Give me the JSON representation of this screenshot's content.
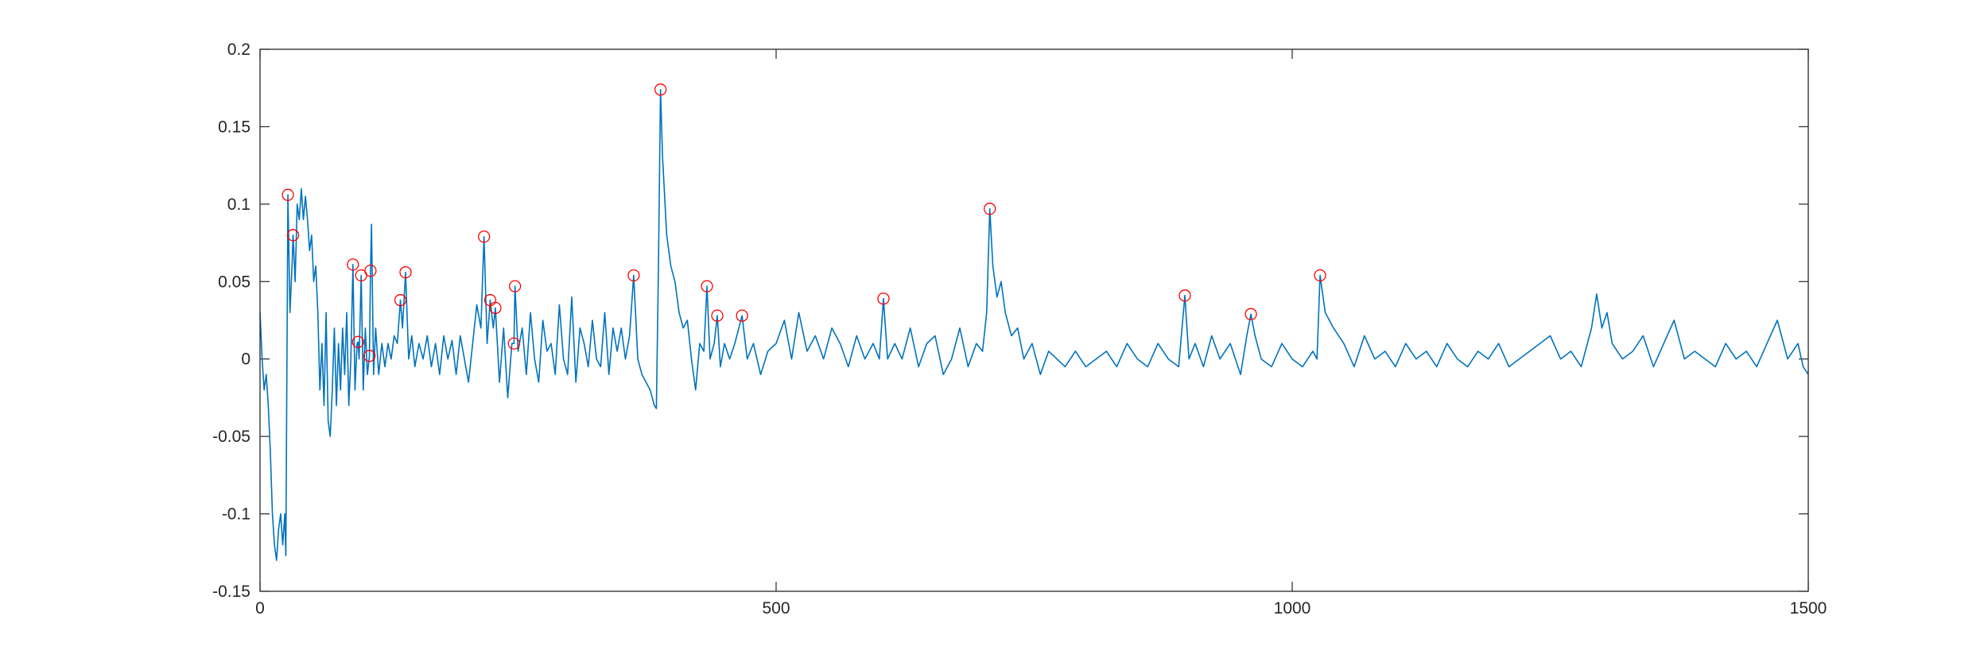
{
  "chart_data": {
    "type": "line",
    "xlim": [
      0,
      1500
    ],
    "ylim": [
      -0.15,
      0.2
    ],
    "xticks": [
      0,
      500,
      1000,
      1500
    ],
    "yticks": [
      -0.15,
      -0.1,
      -0.05,
      0,
      0.05,
      0.1,
      0.15,
      0.2
    ],
    "box": true,
    "series": [
      {
        "color": "#0072bd",
        "marker": "none",
        "x": [
          0,
          2,
          4,
          6,
          8,
          10,
          12,
          14,
          16,
          18,
          20,
          22,
          24,
          25,
          27,
          29,
          31,
          32,
          34,
          36,
          38,
          40,
          42,
          44,
          46,
          48,
          50,
          52,
          54,
          56,
          58,
          60,
          62,
          64,
          66,
          68,
          70,
          72,
          74,
          76,
          78,
          80,
          82,
          84,
          86,
          88,
          90,
          92,
          94,
          95,
          96,
          98,
          100,
          102,
          104,
          106,
          107,
          108,
          110,
          112,
          115,
          118,
          121,
          124,
          127,
          130,
          133,
          136,
          138,
          141,
          144,
          147,
          150,
          154,
          158,
          162,
          166,
          170,
          174,
          178,
          182,
          186,
          190,
          194,
          198,
          202,
          206,
          210,
          214,
          217,
          220,
          223,
          226,
          228,
          232,
          236,
          240,
          244,
          246,
          247,
          250,
          254,
          258,
          262,
          266,
          270,
          274,
          278,
          282,
          286,
          290,
          294,
          298,
          302,
          306,
          310,
          314,
          318,
          322,
          326,
          330,
          334,
          338,
          342,
          346,
          350,
          354,
          358,
          362,
          366,
          370,
          374,
          378,
          382,
          384,
          386,
          388,
          390,
          394,
          398,
          402,
          406,
          410,
          414,
          418,
          422,
          426,
          430,
          433,
          436,
          440,
          443,
          446,
          450,
          455,
          460,
          467,
          472,
          478,
          485,
          492,
          500,
          508,
          515,
          522,
          530,
          538,
          546,
          554,
          562,
          570,
          578,
          586,
          594,
          600,
          604,
          608,
          615,
          622,
          630,
          638,
          646,
          654,
          662,
          670,
          678,
          686,
          694,
          700,
          704,
          707,
          710,
          714,
          718,
          722,
          728,
          734,
          740,
          748,
          756,
          764,
          772,
          780,
          790,
          800,
          810,
          820,
          830,
          840,
          850,
          860,
          870,
          880,
          890,
          896,
          900,
          906,
          914,
          922,
          930,
          940,
          950,
          956,
          960,
          964,
          970,
          980,
          990,
          1000,
          1010,
          1020,
          1024,
          1027,
          1032,
          1040,
          1050,
          1060,
          1070,
          1080,
          1090,
          1100,
          1110,
          1120,
          1130,
          1140,
          1150,
          1160,
          1170,
          1180,
          1190,
          1200,
          1210,
          1220,
          1230,
          1240,
          1250,
          1260,
          1270,
          1280,
          1290,
          1295,
          1300,
          1305,
          1310,
          1320,
          1330,
          1340,
          1350,
          1360,
          1370,
          1380,
          1390,
          1400,
          1410,
          1420,
          1430,
          1440,
          1450,
          1460,
          1470,
          1480,
          1490,
          1495,
          1500
        ],
        "values": [
          0.03,
          0.0,
          -0.02,
          -0.01,
          -0.03,
          -0.06,
          -0.1,
          -0.12,
          -0.13,
          -0.11,
          -0.1,
          -0.12,
          -0.1,
          -0.127,
          0.106,
          0.03,
          0.06,
          0.08,
          0.05,
          0.1,
          0.09,
          0.11,
          0.09,
          0.105,
          0.09,
          0.07,
          0.08,
          0.05,
          0.06,
          0.03,
          -0.02,
          0.01,
          -0.03,
          0.03,
          -0.04,
          -0.05,
          -0.02,
          0.02,
          -0.03,
          0.01,
          -0.02,
          0.02,
          -0.01,
          0.03,
          -0.03,
          0.0,
          0.061,
          -0.02,
          0.01,
          0.011,
          0.0,
          0.054,
          -0.02,
          0.02,
          -0.01,
          0.002,
          0.057,
          0.087,
          -0.01,
          0.02,
          -0.01,
          0.01,
          -0.005,
          0.01,
          0.0,
          0.015,
          0.01,
          0.038,
          0.02,
          0.056,
          0.0,
          0.015,
          -0.005,
          0.01,
          0.0,
          0.015,
          -0.005,
          0.01,
          -0.01,
          0.015,
          0.0,
          0.012,
          -0.01,
          0.015,
          0.0,
          -0.015,
          0.01,
          0.035,
          0.02,
          0.079,
          0.01,
          0.038,
          0.02,
          0.033,
          -0.015,
          0.02,
          -0.025,
          0.01,
          0.01,
          0.047,
          0.005,
          0.02,
          -0.01,
          0.03,
          0.0,
          -0.015,
          0.025,
          0.005,
          0.01,
          -0.01,
          0.035,
          0.0,
          -0.01,
          0.04,
          -0.015,
          0.02,
          0.01,
          -0.005,
          0.025,
          0.0,
          -0.005,
          0.03,
          -0.01,
          0.02,
          0.005,
          0.02,
          0.0,
          0.015,
          0.054,
          0.0,
          -0.01,
          -0.015,
          -0.02,
          -0.03,
          -0.032,
          0.06,
          0.174,
          0.13,
          0.08,
          0.06,
          0.05,
          0.03,
          0.02,
          0.025,
          0.0,
          -0.02,
          0.01,
          0.005,
          0.047,
          0.0,
          0.01,
          0.028,
          -0.005,
          0.01,
          0.0,
          0.01,
          0.028,
          0.0,
          0.01,
          -0.01,
          0.005,
          0.01,
          0.025,
          0.0,
          0.03,
          0.005,
          0.015,
          0.0,
          0.02,
          0.01,
          -0.005,
          0.015,
          0.0,
          0.01,
          0.0,
          0.039,
          0.0,
          0.01,
          0.0,
          0.02,
          -0.005,
          0.01,
          0.015,
          -0.01,
          0.0,
          0.02,
          -0.005,
          0.01,
          0.005,
          0.03,
          0.097,
          0.06,
          0.04,
          0.05,
          0.03,
          0.015,
          0.02,
          0.0,
          0.01,
          -0.01,
          0.005,
          0.0,
          -0.005,
          0.005,
          -0.005,
          0.0,
          0.005,
          -0.005,
          0.01,
          0.0,
          -0.005,
          0.01,
          0.0,
          -0.005,
          0.041,
          0.0,
          0.01,
          -0.005,
          0.015,
          0.0,
          0.01,
          -0.01,
          0.015,
          0.029,
          0.015,
          0.0,
          -0.005,
          0.01,
          0.0,
          -0.005,
          0.005,
          0.0,
          0.054,
          0.03,
          0.02,
          0.01,
          -0.005,
          0.015,
          0.0,
          0.005,
          -0.005,
          0.01,
          0.0,
          0.005,
          -0.005,
          0.01,
          0.0,
          -0.005,
          0.005,
          0.0,
          0.01,
          -0.005,
          0.0,
          0.005,
          0.01,
          0.015,
          0.0,
          0.005,
          -0.005,
          0.02,
          0.042,
          0.02,
          0.03,
          0.01,
          0.0,
          0.005,
          0.015,
          -0.005,
          0.01,
          0.025,
          0.0,
          0.005,
          0.0,
          -0.005,
          0.01,
          0.0,
          0.005,
          -0.005,
          0.01,
          0.025,
          0.0,
          0.01,
          -0.005,
          -0.01
        ]
      },
      {
        "color": "#ff0000",
        "marker": "circle",
        "x": [
          27,
          32,
          90,
          95,
          98,
          106,
          107,
          136,
          141,
          217,
          223,
          228,
          246,
          247,
          362,
          388,
          433,
          443,
          467,
          604,
          707,
          896,
          960,
          1027
        ],
        "values": [
          0.106,
          0.08,
          0.061,
          0.011,
          0.054,
          0.002,
          0.057,
          0.038,
          0.056,
          0.079,
          0.038,
          0.033,
          0.01,
          0.047,
          0.054,
          0.174,
          0.047,
          0.028,
          0.028,
          0.039,
          0.097,
          0.041,
          0.029,
          0.054
        ]
      }
    ]
  }
}
